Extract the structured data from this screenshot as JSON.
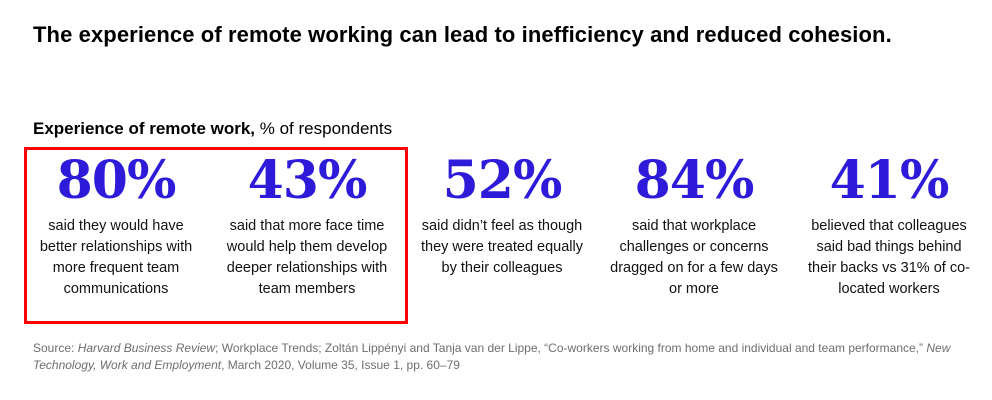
{
  "header": {
    "title": "The experience of remote working can lead to inefficiency and reduced cohesion.",
    "subtitle_main": "Experience of remote work,",
    "subtitle_unit": "% of respondents"
  },
  "colors": {
    "accent": "#2e1bd9",
    "highlight_border": "#ff0000",
    "source_text": "#6e6e6e"
  },
  "chart_data": {
    "type": "table",
    "title": "Experience of remote work",
    "unit": "% of respondents",
    "values": [
      80,
      43,
      52,
      84,
      41
    ],
    "stats": [
      {
        "value": "80%",
        "text": "said they would have better relationships with more frequent team communications",
        "highlighted": true
      },
      {
        "value": "43%",
        "text": "said that more face time would help them develop deeper relationships with team members",
        "highlighted": true
      },
      {
        "value": "52%",
        "text": "said didn’t feel as though they were treated equally by their colleagues",
        "highlighted": false
      },
      {
        "value": "84%",
        "text": "said that workplace challenges or concerns dragged on for a few days or more",
        "highlighted": false
      },
      {
        "value": "41%",
        "text": "believed that colleagues said bad things behind their backs vs 31% of co-located workers",
        "highlighted": false
      }
    ]
  },
  "source": {
    "prefix": "Source: ",
    "pub1": "Harvard Business Review",
    "part1": "; Workplace Trends; Zoltán Lippényi and Tanja van der Lippe, “Co-workers working from home and individual and team performance,” ",
    "pub2": "New Technology, Work and Employment",
    "part2": ", March 2020, Volume 35, Issue 1, pp. 60–79"
  }
}
